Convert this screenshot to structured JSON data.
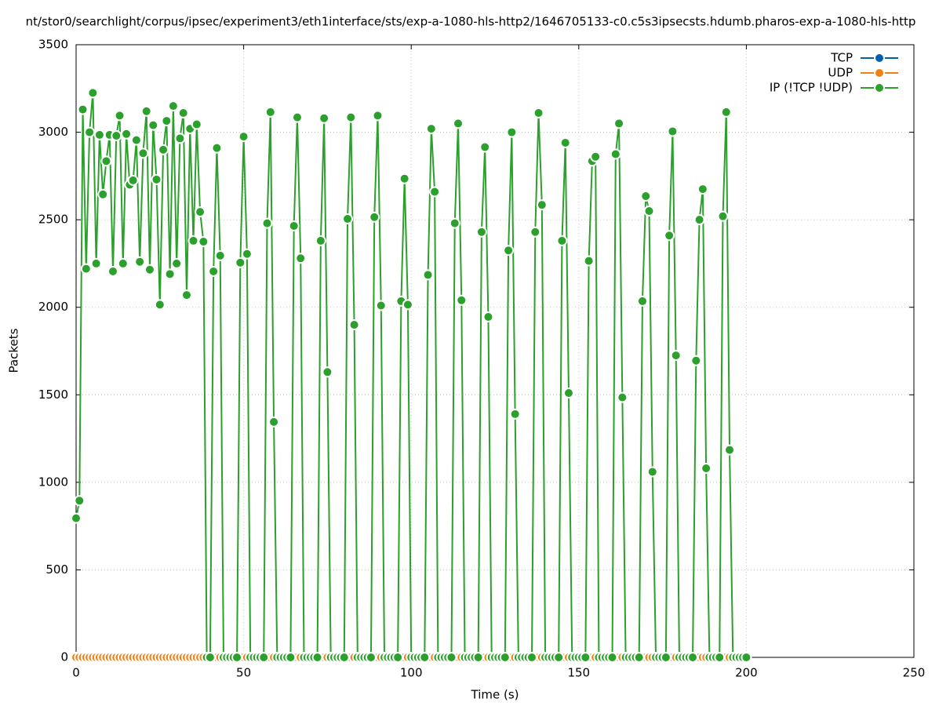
{
  "chart_data": {
    "type": "line",
    "title": "nt/stor0/searchlight/corpus/ipsec/experiment3/eth1interface/sts/exp-a-1080-hls-http2/1646705133-c0.c5s3ipsecsts.hdumb.pharos-exp-a-1080-hls-http",
    "x_label": "Time (s)",
    "y_label": "Packets",
    "xlim": [
      0,
      250
    ],
    "xticks": [
      0,
      50,
      100,
      150,
      200,
      250
    ],
    "ylim": [
      0,
      3500
    ],
    "yticks": [
      0,
      500,
      1000,
      1500,
      2000,
      2500,
      3000,
      3500
    ],
    "grid": true,
    "legend": "top-right",
    "x": [
      0,
      1,
      2,
      3,
      4,
      5,
      6,
      7,
      8,
      9,
      10,
      11,
      12,
      13,
      14,
      15,
      16,
      17,
      18,
      19,
      20,
      21,
      22,
      23,
      24,
      25,
      26,
      27,
      28,
      29,
      30,
      31,
      32,
      33,
      34,
      35,
      36,
      37,
      38,
      39,
      40,
      41,
      42,
      43,
      44,
      45,
      46,
      47,
      48,
      49,
      50,
      51,
      52,
      53,
      54,
      55,
      56,
      57,
      58,
      59,
      60,
      61,
      62,
      63,
      64,
      65,
      66,
      67,
      68,
      69,
      70,
      71,
      72,
      73,
      74,
      75,
      76,
      77,
      78,
      79,
      80,
      81,
      82,
      83,
      84,
      85,
      86,
      87,
      88,
      89,
      90,
      91,
      92,
      93,
      94,
      95,
      96,
      97,
      98,
      99,
      100,
      101,
      102,
      103,
      104,
      105,
      106,
      107,
      108,
      109,
      110,
      111,
      112,
      113,
      114,
      115,
      116,
      117,
      118,
      119,
      120,
      121,
      122,
      123,
      124,
      125,
      126,
      127,
      128,
      129,
      130,
      131,
      132,
      133,
      134,
      135,
      136,
      137,
      138,
      139,
      140,
      141,
      142,
      143,
      144,
      145,
      146,
      147,
      148,
      149,
      150,
      151,
      152,
      153,
      154,
      155,
      156,
      157,
      158,
      159,
      160,
      161,
      162,
      163,
      164,
      165,
      166,
      167,
      168,
      169,
      170,
      171,
      172,
      173,
      174,
      175,
      176,
      177,
      178,
      179,
      180,
      181,
      182,
      183,
      184,
      185,
      186,
      187,
      188,
      189,
      190,
      191,
      192,
      193,
      194,
      195,
      196,
      197,
      198,
      199,
      200
    ],
    "series": [
      {
        "name": "TCP",
        "color": "#0060ad",
        "values": [
          0,
          0,
          0,
          0,
          0,
          0,
          0,
          0,
          0,
          0,
          0,
          0,
          0,
          0,
          0,
          0,
          0,
          0,
          0,
          0,
          0,
          0,
          0,
          0,
          0,
          0,
          0,
          0,
          0,
          0,
          0,
          0,
          0,
          0,
          0,
          0,
          0,
          0,
          0,
          0,
          0,
          0,
          0,
          0,
          0,
          0,
          0,
          0,
          0,
          0,
          0,
          0,
          0,
          0,
          0,
          0,
          0,
          0,
          0,
          0,
          0,
          0,
          0,
          0,
          0,
          0,
          0,
          0,
          0,
          0,
          0,
          0,
          0,
          0,
          0,
          0,
          0,
          0,
          0,
          0,
          0,
          0,
          0,
          0,
          0,
          0,
          0,
          0,
          0,
          0,
          0,
          0,
          0,
          0,
          0,
          0,
          0,
          0,
          0,
          0,
          0,
          0,
          0,
          0,
          0,
          0,
          0,
          0,
          0,
          0,
          0,
          0,
          0,
          0,
          0,
          0,
          0,
          0,
          0,
          0,
          0,
          0,
          0,
          0,
          0,
          0,
          0,
          0,
          0,
          0,
          0,
          0,
          0,
          0,
          0,
          0,
          0,
          0,
          0,
          0,
          0,
          0,
          0,
          0,
          0,
          0,
          0,
          0,
          0,
          0,
          0,
          0,
          0,
          0,
          0,
          0,
          0,
          0,
          0,
          0,
          0,
          0,
          0,
          0,
          0,
          0,
          0,
          0,
          0,
          0,
          0,
          0,
          0,
          0,
          0,
          0,
          0,
          0,
          0,
          0,
          0,
          0,
          0,
          0,
          0,
          0,
          0,
          0,
          0,
          0,
          0,
          0,
          0,
          0,
          0,
          0,
          0,
          0,
          0,
          0,
          0
        ]
      },
      {
        "name": "UDP",
        "color": "#f07f14",
        "values": [
          0,
          0,
          0,
          0,
          0,
          0,
          0,
          0,
          0,
          0,
          0,
          0,
          0,
          0,
          0,
          0,
          0,
          0,
          0,
          0,
          0,
          0,
          0,
          0,
          0,
          0,
          0,
          0,
          0,
          0,
          0,
          0,
          0,
          0,
          0,
          0,
          0,
          0,
          0,
          0,
          0,
          0,
          0,
          0,
          0,
          0,
          0,
          0,
          0,
          0,
          0,
          0,
          0,
          0,
          0,
          0,
          0,
          0,
          0,
          0,
          0,
          0,
          0,
          0,
          0,
          0,
          0,
          0,
          0,
          0,
          0,
          0,
          0,
          0,
          0,
          0,
          0,
          0,
          0,
          0,
          0,
          0,
          0,
          0,
          0,
          0,
          0,
          0,
          0,
          0,
          0,
          0,
          0,
          0,
          0,
          0,
          0,
          0,
          0,
          0,
          0,
          0,
          0,
          0,
          0,
          0,
          0,
          0,
          0,
          0,
          0,
          0,
          0,
          0,
          0,
          0,
          0,
          0,
          0,
          0,
          0,
          0,
          0,
          0,
          0,
          0,
          0,
          0,
          0,
          0,
          0,
          0,
          0,
          0,
          0,
          0,
          0,
          0,
          0,
          0,
          0,
          0,
          0,
          0,
          0,
          0,
          0,
          0,
          0,
          0,
          0,
          0,
          0,
          0,
          0,
          0,
          0,
          0,
          0,
          0,
          0,
          0,
          0,
          0,
          0,
          0,
          0,
          0,
          0,
          0,
          0,
          0,
          0,
          0,
          0,
          0,
          0,
          0,
          0,
          0,
          0,
          0,
          0,
          0,
          0,
          0,
          0,
          0,
          0,
          0,
          0,
          0,
          0,
          0,
          0,
          0,
          0,
          0,
          0,
          0,
          0
        ]
      },
      {
        "name": "IP (!TCP  !UDP)",
        "color": "#2ca02c",
        "values": [
          795,
          895,
          3130,
          2220,
          3000,
          3225,
          2250,
          2985,
          2645,
          2835,
          2985,
          2205,
          2980,
          3095,
          2250,
          2990,
          2700,
          2725,
          2955,
          2260,
          2880,
          3120,
          2215,
          3040,
          2730,
          2015,
          2900,
          3065,
          2190,
          3150,
          2250,
          2965,
          3110,
          2070,
          3020,
          2380,
          3045,
          2545,
          2375,
          0,
          0,
          2205,
          2910,
          2295,
          0,
          0,
          0,
          0,
          0,
          2255,
          2975,
          2305,
          0,
          0,
          0,
          0,
          0,
          2480,
          3115,
          1345,
          0,
          0,
          0,
          0,
          0,
          2465,
          3085,
          2280,
          0,
          0,
          0,
          0,
          0,
          2380,
          3080,
          1630,
          0,
          0,
          0,
          0,
          0,
          2505,
          3085,
          1900,
          0,
          0,
          0,
          0,
          0,
          2515,
          3095,
          2010,
          0,
          0,
          0,
          0,
          0,
          2035,
          2735,
          2015,
          0,
          0,
          0,
          0,
          0,
          2185,
          3020,
          2660,
          0,
          0,
          0,
          0,
          0,
          2480,
          3050,
          2040,
          0,
          0,
          0,
          0,
          0,
          2430,
          2915,
          1945,
          0,
          0,
          0,
          0,
          0,
          2325,
          3000,
          1390,
          0,
          0,
          0,
          0,
          0,
          2430,
          3110,
          2585,
          0,
          0,
          0,
          0,
          0,
          2380,
          2940,
          1510,
          0,
          0,
          0,
          0,
          0,
          2265,
          2835,
          2860,
          0,
          0,
          0,
          0,
          0,
          2875,
          3050,
          1485,
          0,
          0,
          0,
          0,
          0,
          2035,
          2635,
          2550,
          1060,
          0,
          0,
          0,
          0,
          2410,
          3005,
          1725,
          0,
          0,
          0,
          0,
          0,
          1695,
          2500,
          2675,
          1080,
          0,
          0,
          0,
          0,
          2520,
          3115,
          1185,
          0,
          0,
          0,
          0,
          0
        ]
      }
    ]
  }
}
